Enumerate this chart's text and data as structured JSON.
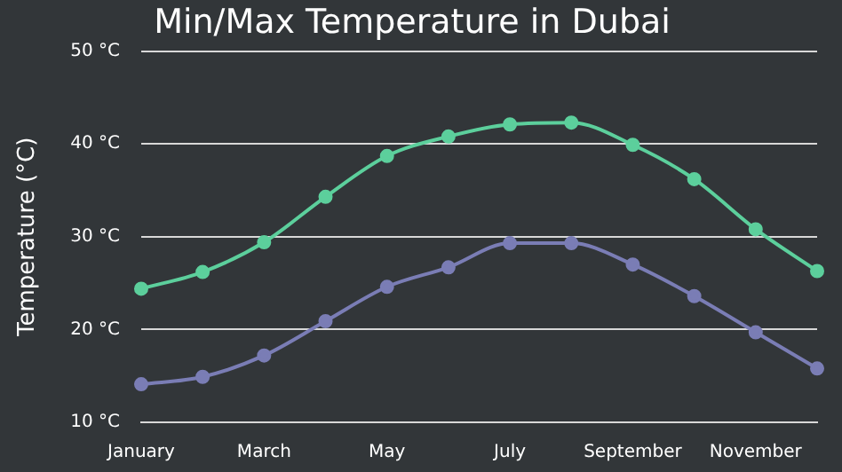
{
  "chart_data": {
    "type": "line",
    "title": "Min/Max Temperature in Dubai",
    "ylabel": "Temperature (°C)",
    "categories": [
      "January",
      null,
      "March",
      null,
      "May",
      null,
      "July",
      null,
      "September",
      null,
      "November",
      null
    ],
    "series": [
      {
        "color": "#5ccf9c",
        "values": [
          24.4,
          26.2,
          29.4,
          34.3,
          38.7,
          40.8,
          42.1,
          42.3,
          39.9,
          36.2,
          30.8,
          26.3
        ]
      },
      {
        "color": "#7a7db5",
        "values": [
          14.1,
          14.9,
          17.2,
          20.9,
          24.6,
          26.7,
          29.3,
          29.3,
          27.0,
          23.6,
          19.7,
          15.8
        ]
      }
    ],
    "ylim": [
      10,
      50
    ],
    "yticks": [
      {
        "value": 10,
        "label": "10 °C"
      },
      {
        "value": 20,
        "label": "20 °C"
      },
      {
        "value": 30,
        "label": "30 °C"
      },
      {
        "value": 40,
        "label": "40 °C"
      },
      {
        "value": 50,
        "label": "50 °C"
      }
    ],
    "grid": "y",
    "legend": false,
    "marker": "circle",
    "line_style": "solid"
  }
}
